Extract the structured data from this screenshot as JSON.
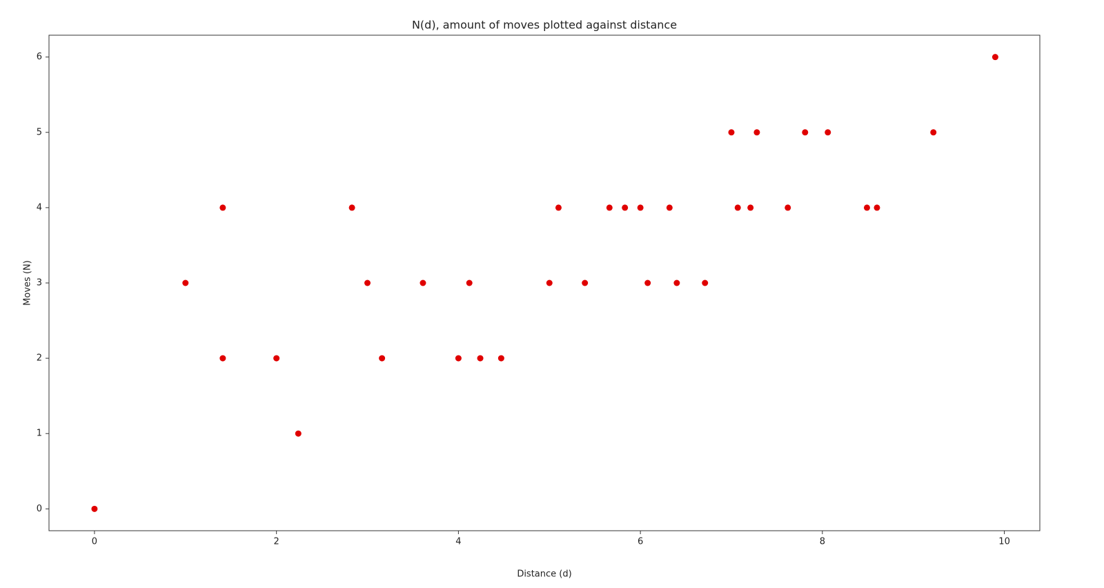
{
  "chart_data": {
    "type": "scatter",
    "title": "N(d), amount of moves plotted against distance",
    "x_label": "Distance (d)",
    "y_label": "Moves (N)",
    "x": [
      0,
      1,
      1.41,
      1.41,
      2,
      2.24,
      2.83,
      3,
      3.16,
      3.61,
      4,
      4.12,
      4.24,
      4.47,
      5,
      5.1,
      5.39,
      5.66,
      5.83,
      6,
      6.08,
      6.32,
      6.4,
      6.71,
      7,
      7.07,
      7.21,
      7.28,
      7.62,
      7.81,
      8.06,
      8.49,
      8.6,
      9.22,
      9.9
    ],
    "y": [
      0,
      3,
      4,
      2,
      2,
      1,
      4,
      3,
      2,
      3,
      2,
      3,
      2,
      2,
      3,
      4,
      3,
      4,
      4,
      4,
      3,
      4,
      3,
      3,
      5,
      4,
      4,
      5,
      4,
      5,
      5,
      4,
      4,
      5,
      6
    ],
    "color": "#e00000",
    "xlim": [
      -0.5,
      10.39
    ],
    "ylim": [
      -0.29,
      6.29
    ],
    "xticks": [
      0,
      2,
      4,
      6,
      8,
      10
    ],
    "yticks": [
      0,
      1,
      2,
      3,
      4,
      5,
      6
    ]
  }
}
